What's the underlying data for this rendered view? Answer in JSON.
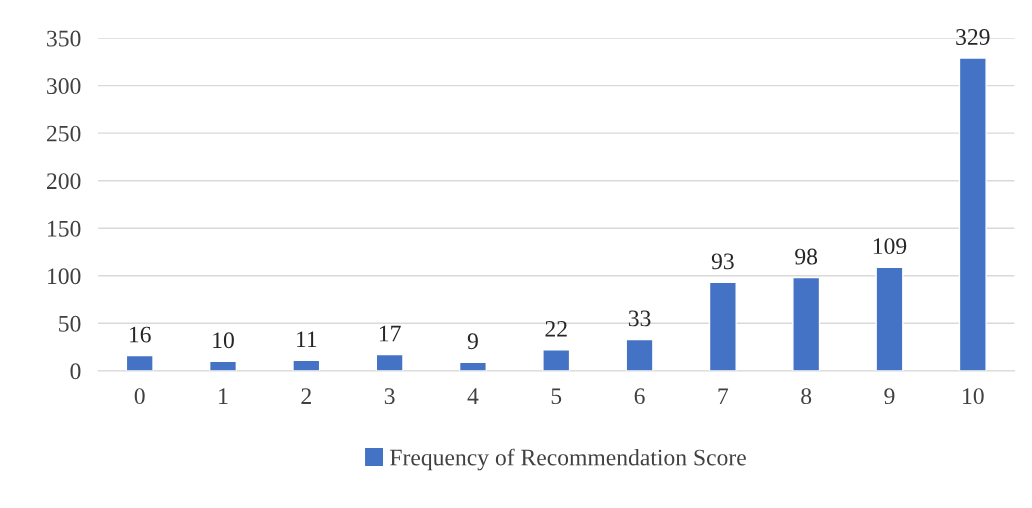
{
  "chart_data": {
    "type": "bar",
    "categories": [
      "0",
      "1",
      "2",
      "3",
      "4",
      "5",
      "6",
      "7",
      "8",
      "9",
      "10"
    ],
    "series": [
      {
        "name": "Frequency of Recommendation Score",
        "color": "#4472c4",
        "values": [
          16,
          10,
          11,
          17,
          9,
          22,
          33,
          93,
          98,
          109,
          329
        ]
      }
    ],
    "ylim": [
      0,
      350
    ],
    "yticks": [
      0,
      50,
      100,
      150,
      200,
      250,
      300,
      350
    ],
    "grid": "y",
    "legend": "bottom",
    "data_labels": true
  }
}
